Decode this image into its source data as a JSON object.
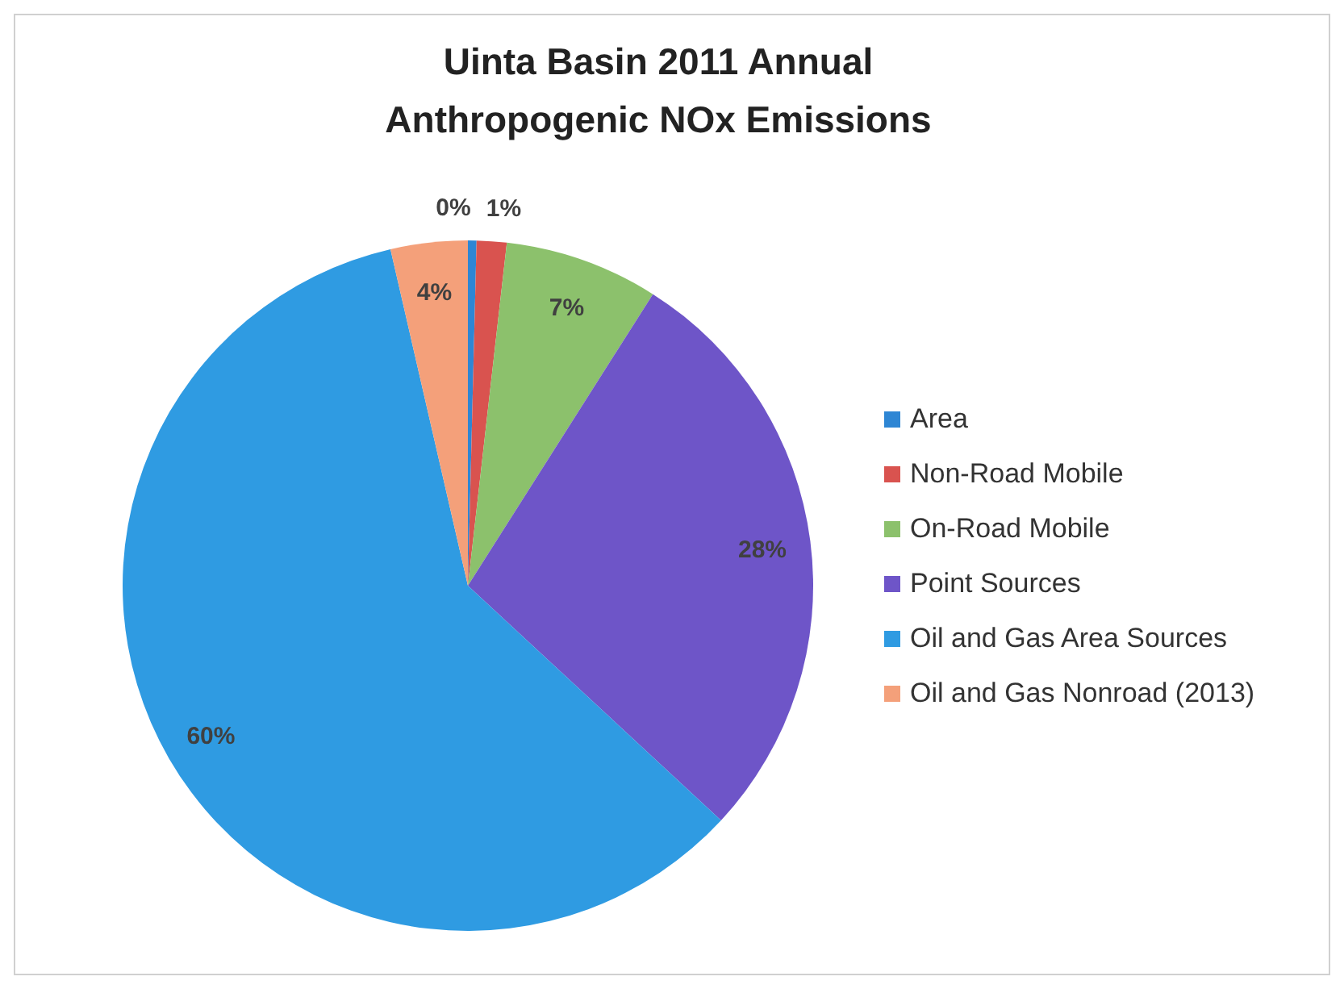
{
  "chart_data": {
    "type": "pie",
    "title": "Uinta Basin 2011 Annual\nAnthropogenic NOx Emissions",
    "categories": [
      "Area",
      "Non-Road Mobile",
      "On-Road Mobile",
      "Point Sources",
      "Oil and Gas Area Sources",
      "Oil and Gas Nonroad (2013)"
    ],
    "values": [
      0.4,
      1.4,
      7.2,
      27.9,
      59.5,
      3.6
    ],
    "value_labels": [
      "0%",
      "1%",
      "7%",
      "28%",
      "60%",
      "4%"
    ],
    "colors": [
      "#2e86d4",
      "#d9534f",
      "#8cc16c",
      "#6e55c8",
      "#2f9be2",
      "#f4a07a"
    ],
    "legend": "right"
  }
}
